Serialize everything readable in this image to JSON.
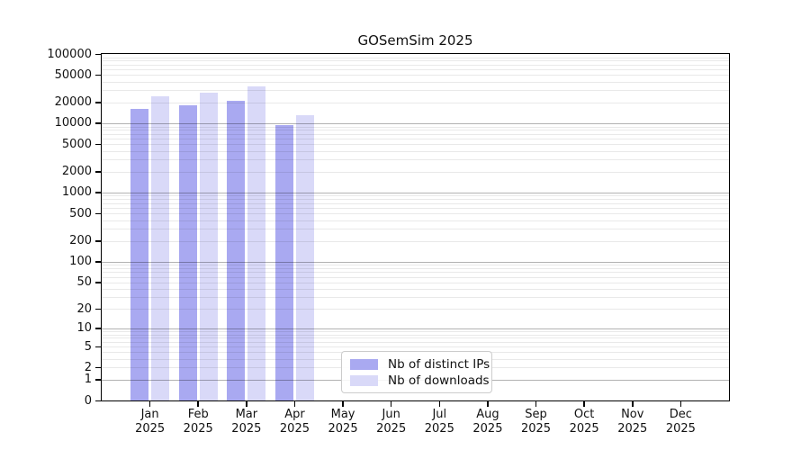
{
  "title": "GOSemSim 2025",
  "chart_data": {
    "type": "bar",
    "title": "GOSemSim 2025",
    "xlabel": "",
    "ylabel": "",
    "scale": "log1p",
    "ylim": [
      0,
      100000
    ],
    "y_ticks": [
      100000,
      50000,
      20000,
      10000,
      5000,
      2000,
      1000,
      500,
      200,
      100,
      50,
      20,
      10,
      5,
      2,
      1,
      0
    ],
    "grid": "horizontal, minor+major",
    "legend_position": "lower center-right inside plot",
    "categories": [
      "Jan",
      "Feb",
      "Mar",
      "Apr",
      "May",
      "Jun",
      "Jul",
      "Aug",
      "Sep",
      "Oct",
      "Nov",
      "Dec"
    ],
    "category_sublabel": "2025",
    "series": [
      {
        "name": "Nb of distinct IPs",
        "color": "#a9a9f1",
        "values": [
          16200,
          18200,
          21200,
          9500,
          null,
          null,
          null,
          null,
          null,
          null,
          null,
          null
        ]
      },
      {
        "name": "Nb of downloads",
        "color": "#d9d9f8",
        "values": [
          24400,
          27800,
          33900,
          13000,
          null,
          null,
          null,
          null,
          null,
          null,
          null,
          null
        ]
      }
    ]
  }
}
